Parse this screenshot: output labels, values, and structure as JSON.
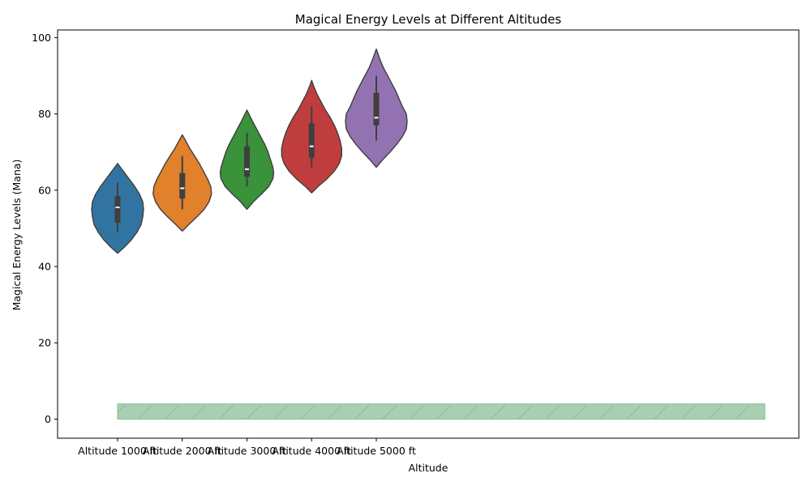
{
  "chart_data": {
    "type": "violin",
    "title": "Magical Energy Levels at Different Altitudes",
    "xlabel": "Altitude",
    "ylabel": "Magical Energy Levels (Mana)",
    "ylim": [
      -5,
      102
    ],
    "yticks": [
      0,
      20,
      40,
      60,
      80,
      100
    ],
    "categories": [
      "Altitude 1000 ft",
      "Altitude 2000 ft",
      "Altitude 3000 ft",
      "Altitude 4000 ft",
      "Altitude 5000 ft"
    ],
    "colors": [
      "#3274a1",
      "#e1812c",
      "#3a923a",
      "#c03d3e",
      "#9372b2"
    ],
    "violins": [
      {
        "min": 43.5,
        "max": 67.0,
        "whisker_low": 49.0,
        "whisker_high": 62.0,
        "q1": 51.5,
        "median": 55.5,
        "q3": 58.5,
        "profile": [
          [
            43.5,
            0
          ],
          [
            45,
            8
          ],
          [
            47,
            17
          ],
          [
            49,
            24
          ],
          [
            51,
            29
          ],
          [
            53,
            31
          ],
          [
            55,
            32
          ],
          [
            57,
            31
          ],
          [
            59,
            27
          ],
          [
            61,
            21
          ],
          [
            63,
            14
          ],
          [
            65,
            7
          ],
          [
            67,
            0
          ]
        ]
      },
      {
        "min": 49.3,
        "max": 74.5,
        "whisker_low": 55.0,
        "whisker_high": 69.0,
        "q1": 57.8,
        "median": 60.5,
        "q3": 64.5,
        "profile": [
          [
            49.3,
            0
          ],
          [
            51,
            8
          ],
          [
            53,
            18
          ],
          [
            55,
            27
          ],
          [
            57,
            33
          ],
          [
            59,
            36
          ],
          [
            61,
            35
          ],
          [
            63,
            31
          ],
          [
            65,
            26
          ],
          [
            67,
            21
          ],
          [
            69,
            15
          ],
          [
            71,
            9
          ],
          [
            73,
            4
          ],
          [
            74.5,
            0
          ]
        ]
      },
      {
        "min": 55.0,
        "max": 81.0,
        "whisker_low": 61.0,
        "whisker_high": 75.0,
        "q1": 63.5,
        "median": 65.5,
        "q3": 71.5,
        "profile": [
          [
            55,
            0
          ],
          [
            57,
            8
          ],
          [
            59,
            18
          ],
          [
            61,
            27
          ],
          [
            63,
            32
          ],
          [
            64.5,
            33
          ],
          [
            66,
            32
          ],
          [
            68,
            29
          ],
          [
            70,
            26
          ],
          [
            72,
            22
          ],
          [
            74,
            17
          ],
          [
            76,
            12
          ],
          [
            78,
            7
          ],
          [
            81,
            0
          ]
        ]
      },
      {
        "min": 59.3,
        "max": 88.8,
        "whisker_low": 66.0,
        "whisker_high": 82.0,
        "q1": 68.5,
        "median": 71.5,
        "q3": 77.5,
        "profile": [
          [
            59.3,
            0
          ],
          [
            61,
            8
          ],
          [
            63,
            19
          ],
          [
            65,
            28
          ],
          [
            67,
            34
          ],
          [
            69,
            37
          ],
          [
            71,
            37
          ],
          [
            73,
            35
          ],
          [
            75,
            32
          ],
          [
            77,
            28
          ],
          [
            79,
            23
          ],
          [
            81,
            17
          ],
          [
            83,
            12
          ],
          [
            85,
            7
          ],
          [
            87,
            3
          ],
          [
            88.8,
            0
          ]
        ]
      },
      {
        "min": 66.0,
        "max": 97.0,
        "whisker_low": 73.0,
        "whisker_high": 90.0,
        "q1": 77.0,
        "median": 79.0,
        "q3": 85.5,
        "profile": [
          [
            66,
            0
          ],
          [
            68,
            8
          ],
          [
            70,
            17
          ],
          [
            72,
            25
          ],
          [
            74,
            32
          ],
          [
            76,
            37
          ],
          [
            78,
            38
          ],
          [
            80,
            37
          ],
          [
            82,
            32
          ],
          [
            84,
            28
          ],
          [
            86,
            24
          ],
          [
            88,
            19
          ],
          [
            90,
            14
          ],
          [
            92,
            9
          ],
          [
            94,
            5
          ],
          [
            97,
            0
          ]
        ]
      }
    ],
    "band": {
      "y_low": 0,
      "y_high": 4,
      "color": "#a9cfb3",
      "edge": "#86bf93"
    }
  }
}
